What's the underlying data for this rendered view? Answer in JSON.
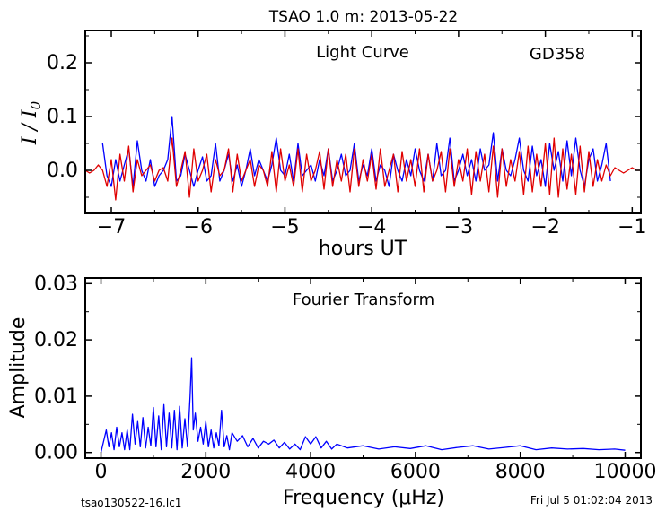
{
  "figure": {
    "title": "TSAO 1.0 m:  2013-05-22",
    "footer_left": "tsao130522-16.lc1",
    "footer_right": "Fri Jul  5 01:02:04 2013"
  },
  "chart_data": [
    {
      "id": "light-curve",
      "type": "line",
      "title": "Light Curve",
      "annotation": "GD358",
      "xlabel": "hours UT",
      "ylabel": "I / I0",
      "xlim": [
        -7.3,
        -0.9
      ],
      "ylim": [
        -0.08,
        0.26
      ],
      "xticks": [
        -7,
        -6,
        -5,
        -4,
        -3,
        -2,
        -1
      ],
      "xtick_labels": [
        "−7",
        "−6",
        "−5",
        "−4",
        "−3",
        "−2",
        "−1"
      ],
      "yticks": [
        0.0,
        0.1,
        0.2
      ],
      "ytick_labels": [
        "0.0",
        "0.1",
        "0.2"
      ],
      "grid": false,
      "series": [
        {
          "color": "#0000ff",
          "x": [
            -7.1,
            -7.05,
            -7.0,
            -6.95,
            -6.9,
            -6.85,
            -6.8,
            -6.75,
            -6.7,
            -6.65,
            -6.6,
            -6.55,
            -6.5,
            -6.45,
            -6.4,
            -6.35,
            -6.3,
            -6.25,
            -6.2,
            -6.15,
            -6.1,
            -6.05,
            -6.0,
            -5.95,
            -5.9,
            -5.85,
            -5.8,
            -5.75,
            -5.7,
            -5.65,
            -5.6,
            -5.55,
            -5.5,
            -5.45,
            -5.4,
            -5.35,
            -5.3,
            -5.25,
            -5.2,
            -5.15,
            -5.1,
            -5.05,
            -5.0,
            -4.95,
            -4.9,
            -4.85,
            -4.8,
            -4.75,
            -4.7,
            -4.65,
            -4.6,
            -4.55,
            -4.5,
            -4.45,
            -4.4,
            -4.35,
            -4.3,
            -4.25,
            -4.2,
            -4.15,
            -4.1,
            -4.05,
            -4.0,
            -3.95,
            -3.9,
            -3.85,
            -3.8,
            -3.75,
            -3.7,
            -3.65,
            -3.6,
            -3.55,
            -3.5,
            -3.45,
            -3.4,
            -3.35,
            -3.3,
            -3.25,
            -3.2,
            -3.15,
            -3.1,
            -3.05,
            -3.0,
            -2.95,
            -2.9,
            -2.85,
            -2.8,
            -2.75,
            -2.7,
            -2.65,
            -2.6,
            -2.55,
            -2.5,
            -2.45,
            -2.4,
            -2.35,
            -2.3,
            -2.25,
            -2.2,
            -2.15,
            -2.1,
            -2.05,
            -2.0,
            -1.95,
            -1.9,
            -1.85,
            -1.8,
            -1.75,
            -1.7,
            -1.65,
            -1.6,
            -1.55,
            -1.5,
            -1.45,
            -1.4,
            -1.35,
            -1.3,
            -1.25
          ],
          "y": [
            0.05,
            -0.01,
            -0.03,
            0.02,
            -0.02,
            0.01,
            0.04,
            -0.03,
            0.055,
            0.0,
            -0.02,
            0.02,
            -0.03,
            -0.01,
            0.0,
            0.02,
            0.1,
            -0.02,
            -0.01,
            0.03,
            0.0,
            -0.03,
            0.0,
            0.025,
            -0.02,
            -0.01,
            0.05,
            -0.02,
            0.0,
            0.03,
            -0.02,
            0.01,
            -0.03,
            0.0,
            0.04,
            -0.01,
            0.02,
            0.0,
            -0.02,
            0.01,
            0.06,
            0.0,
            -0.01,
            0.03,
            -0.02,
            0.05,
            -0.01,
            0.0,
            0.01,
            -0.02,
            0.02,
            -0.01,
            0.04,
            -0.02,
            0.0,
            0.03,
            -0.01,
            0.0,
            0.05,
            -0.02,
            0.01,
            -0.01,
            0.04,
            -0.02,
            0.01,
            0.0,
            -0.03,
            0.03,
            0.0,
            -0.02,
            0.02,
            -0.01,
            0.04,
            0.0,
            -0.02,
            0.03,
            -0.02,
            0.05,
            -0.01,
            0.0,
            0.06,
            -0.02,
            0.0,
            0.03,
            -0.01,
            0.02,
            -0.02,
            0.04,
            0.0,
            0.01,
            0.07,
            -0.02,
            0.04,
            0.0,
            -0.01,
            0.02,
            0.06,
            0.0,
            -0.02,
            0.045,
            -0.01,
            0.02,
            -0.03,
            0.05,
            0.0,
            0.035,
            -0.02,
            0.055,
            -0.01,
            0.06,
            0.0,
            -0.03,
            0.02,
            0.04,
            -0.02,
            0.01,
            0.05,
            -0.02
          ]
        },
        {
          "color": "#e00000",
          "x": [
            -7.3,
            -7.25,
            -7.2,
            -7.15,
            -7.1,
            -7.05,
            -7.0,
            -6.95,
            -6.9,
            -6.85,
            -6.8,
            -6.75,
            -6.7,
            -6.65,
            -6.6,
            -6.55,
            -6.5,
            -6.45,
            -6.4,
            -6.35,
            -6.3,
            -6.25,
            -6.2,
            -6.15,
            -6.1,
            -6.05,
            -6.0,
            -5.95,
            -5.9,
            -5.85,
            -5.8,
            -5.75,
            -5.7,
            -5.65,
            -5.6,
            -5.55,
            -5.5,
            -5.45,
            -5.4,
            -5.35,
            -5.3,
            -5.25,
            -5.2,
            -5.15,
            -5.1,
            -5.05,
            -5.0,
            -4.95,
            -4.9,
            -4.85,
            -4.8,
            -4.75,
            -4.7,
            -4.65,
            -4.6,
            -4.55,
            -4.5,
            -4.45,
            -4.4,
            -4.35,
            -4.3,
            -4.25,
            -4.2,
            -4.15,
            -4.1,
            -4.05,
            -4.0,
            -3.95,
            -3.9,
            -3.85,
            -3.8,
            -3.75,
            -3.7,
            -3.65,
            -3.6,
            -3.55,
            -3.5,
            -3.45,
            -3.4,
            -3.35,
            -3.3,
            -3.25,
            -3.2,
            -3.15,
            -3.1,
            -3.05,
            -3.0,
            -2.95,
            -2.9,
            -2.85,
            -2.8,
            -2.75,
            -2.7,
            -2.65,
            -2.6,
            -2.55,
            -2.5,
            -2.45,
            -2.4,
            -2.35,
            -2.3,
            -2.25,
            -2.2,
            -2.15,
            -2.1,
            -2.05,
            -2.0,
            -1.95,
            -1.9,
            -1.85,
            -1.8,
            -1.75,
            -1.7,
            -1.65,
            -1.6,
            -1.55,
            -1.5,
            -1.45,
            -1.4,
            -1.35,
            -1.3,
            -1.25,
            -1.2,
            -1.15,
            -1.1,
            -1.05,
            -1.0,
            -0.95,
            -0.9
          ],
          "y": [
            0.0,
            -0.005,
            0.0,
            0.01,
            0.0,
            -0.03,
            0.02,
            -0.055,
            0.03,
            -0.02,
            0.045,
            -0.04,
            0.02,
            -0.01,
            0.0,
            0.01,
            -0.02,
            0.0,
            0.005,
            -0.02,
            0.06,
            -0.03,
            0.0,
            0.035,
            -0.05,
            0.04,
            -0.02,
            0.0,
            0.03,
            -0.04,
            0.02,
            -0.01,
            0.0,
            0.04,
            -0.04,
            0.03,
            -0.02,
            0.0,
            0.02,
            -0.03,
            0.01,
            0.0,
            -0.03,
            0.035,
            -0.04,
            0.04,
            -0.02,
            0.01,
            -0.03,
            0.04,
            -0.04,
            0.03,
            -0.02,
            0.0,
            0.035,
            -0.035,
            0.04,
            -0.03,
            0.02,
            -0.02,
            0.03,
            -0.04,
            0.04,
            -0.03,
            0.02,
            -0.02,
            0.03,
            -0.035,
            0.04,
            -0.03,
            0.0,
            0.03,
            -0.04,
            0.035,
            -0.02,
            0.02,
            -0.03,
            0.04,
            -0.04,
            0.03,
            -0.02,
            0.0,
            0.035,
            -0.04,
            0.04,
            -0.03,
            0.02,
            -0.02,
            0.04,
            -0.045,
            0.035,
            -0.02,
            0.03,
            -0.04,
            0.045,
            -0.05,
            0.04,
            -0.03,
            0.02,
            -0.02,
            0.035,
            -0.045,
            0.045,
            -0.04,
            0.03,
            -0.03,
            0.05,
            -0.045,
            0.06,
            -0.05,
            0.04,
            -0.035,
            0.03,
            -0.045,
            0.045,
            -0.04,
            0.035,
            -0.03,
            0.02,
            -0.02,
            0.01,
            -0.01,
            0.005,
            0.0,
            -0.005,
            0.0,
            0.005,
            0.0,
            0.0
          ]
        }
      ]
    },
    {
      "id": "fourier-transform",
      "type": "line",
      "title": "Fourier Transform",
      "xlabel": "Frequency (μHz)",
      "ylabel": "Amplitude",
      "xlim": [
        -300,
        10300
      ],
      "ylim": [
        -0.001,
        0.031
      ],
      "xticks": [
        0,
        2000,
        4000,
        6000,
        8000,
        10000
      ],
      "xtick_labels": [
        "0",
        "2000",
        "4000",
        "6000",
        "8000",
        "10000"
      ],
      "yticks": [
        0.0,
        0.01,
        0.02,
        0.03
      ],
      "ytick_labels": [
        "0.00",
        "0.01",
        "0.02",
        "0.03"
      ],
      "grid": false,
      "series": [
        {
          "color": "#0000ff",
          "x": [
            0,
            100,
            150,
            200,
            250,
            300,
            350,
            400,
            450,
            500,
            550,
            600,
            650,
            700,
            750,
            800,
            850,
            900,
            950,
            1000,
            1050,
            1100,
            1150,
            1200,
            1250,
            1300,
            1350,
            1400,
            1450,
            1500,
            1550,
            1600,
            1650,
            1700,
            1730,
            1760,
            1800,
            1850,
            1900,
            1950,
            2000,
            2050,
            2100,
            2150,
            2200,
            2250,
            2300,
            2350,
            2400,
            2450,
            2500,
            2600,
            2700,
            2800,
            2900,
            3000,
            3100,
            3200,
            3300,
            3400,
            3500,
            3600,
            3700,
            3800,
            3900,
            4000,
            4100,
            4200,
            4300,
            4400,
            4500,
            4700,
            5000,
            5300,
            5600,
            5900,
            6200,
            6500,
            6800,
            7100,
            7400,
            7700,
            8000,
            8300,
            8600,
            8900,
            9200,
            9500,
            9800,
            10000
          ],
          "y": [
            0.0,
            0.004,
            0.001,
            0.0035,
            0.0005,
            0.0045,
            0.001,
            0.0035,
            0.0005,
            0.004,
            0.0005,
            0.0068,
            0.0015,
            0.0055,
            0.001,
            0.0062,
            0.0008,
            0.0045,
            0.0012,
            0.008,
            0.001,
            0.0065,
            0.0005,
            0.0085,
            0.001,
            0.007,
            0.0008,
            0.0075,
            0.0005,
            0.0082,
            0.0008,
            0.006,
            0.001,
            0.01,
            0.0168,
            0.004,
            0.007,
            0.002,
            0.0045,
            0.0015,
            0.0055,
            0.001,
            0.004,
            0.0008,
            0.0035,
            0.0012,
            0.0075,
            0.001,
            0.003,
            0.0005,
            0.0035,
            0.002,
            0.003,
            0.001,
            0.0025,
            0.0008,
            0.002,
            0.0015,
            0.0022,
            0.0008,
            0.0018,
            0.0006,
            0.0015,
            0.0005,
            0.0028,
            0.0015,
            0.0028,
            0.0008,
            0.002,
            0.0006,
            0.0015,
            0.0008,
            0.0012,
            0.0006,
            0.001,
            0.0007,
            0.0012,
            0.0005,
            0.0009,
            0.0012,
            0.0006,
            0.0009,
            0.0012,
            0.0005,
            0.0008,
            0.0006,
            0.0007,
            0.0005,
            0.0006,
            0.0004
          ]
        }
      ]
    }
  ]
}
